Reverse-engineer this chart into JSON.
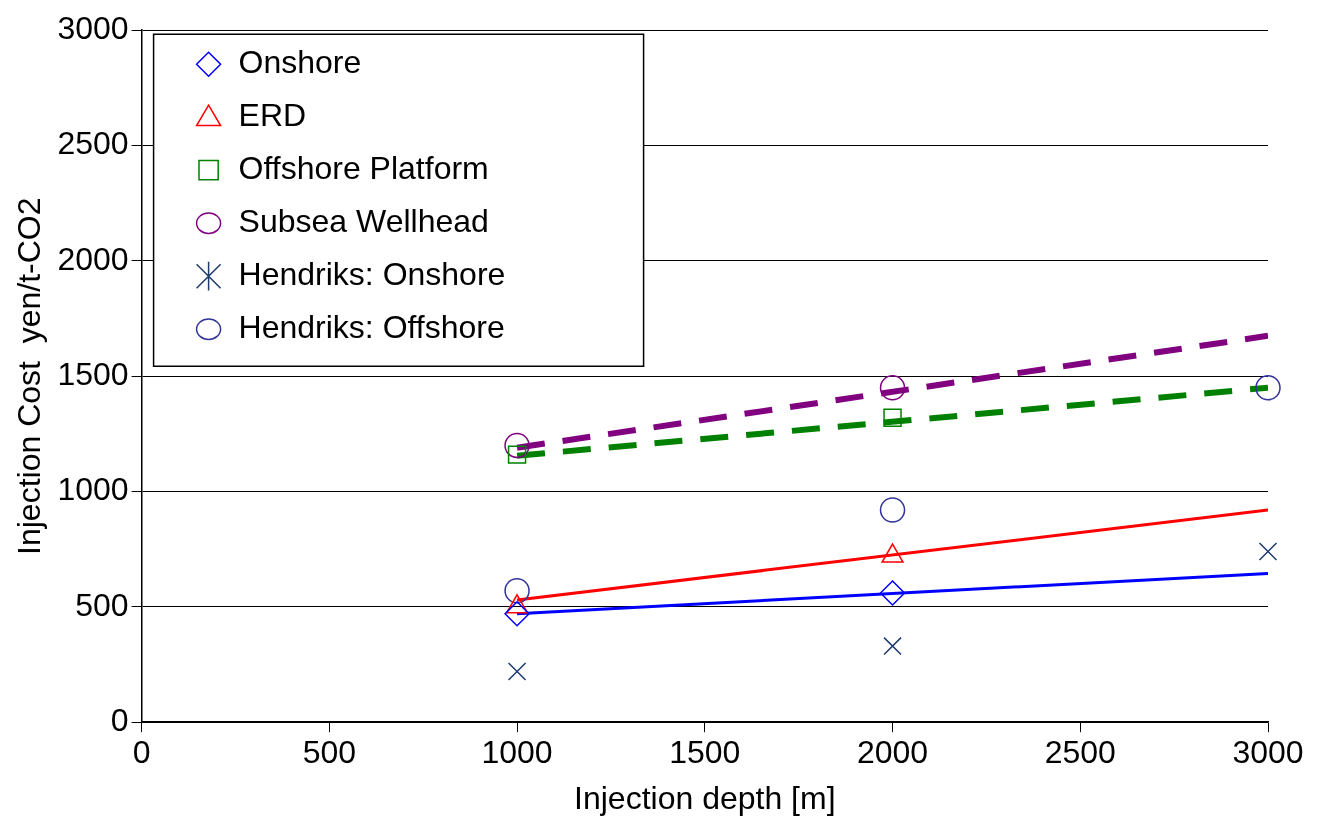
{
  "chart_data": {
    "type": "scatter",
    "xlabel": "Injection depth [m]",
    "ylabel": "Injection Cost  yen/t-CO2",
    "xlim": [
      0,
      3000
    ],
    "ylim": [
      0,
      3000
    ],
    "xticks": [
      0,
      500,
      1000,
      1500,
      2000,
      2500,
      3000
    ],
    "yticks": [
      0,
      500,
      1000,
      1500,
      2000,
      2500,
      3000
    ],
    "grid": "y",
    "legend": "top left",
    "series": [
      {
        "name": "Onshore",
        "color": "#0000ff",
        "marker": "diamond",
        "x": [
          1000,
          2000
        ],
        "values": [
          470,
          560
        ]
      },
      {
        "name": "ERD",
        "color": "#ff0000",
        "marker": "triangle",
        "x": [
          1000,
          2000
        ],
        "values": [
          500,
          720
        ]
      },
      {
        "name": "Offshore Platform",
        "color": "#008000",
        "marker": "square",
        "x": [
          1000,
          2000
        ],
        "values": [
          1160,
          1320
        ]
      },
      {
        "name": "Subsea Wellhead",
        "color": "#800080",
        "marker": "circle",
        "x": [
          1000,
          2000
        ],
        "values": [
          1200,
          1450
        ]
      },
      {
        "name": "Hendriks: Onshore",
        "color": "#1f3a6e",
        "marker": "cross",
        "x": [
          1000,
          2000,
          3000
        ],
        "values": [
          220,
          330,
          740
        ]
      },
      {
        "name": "Hendriks: Offshore",
        "color": "#333399",
        "marker": "circle",
        "x": [
          1000,
          2000,
          3000
        ],
        "values": [
          570,
          920,
          1450
        ]
      },
      {
        "type": "line",
        "color": "#0000ff",
        "line_style": "solid",
        "marker": "none",
        "x": [
          1000,
          3000
        ],
        "values": [
          470,
          645
        ]
      },
      {
        "type": "line",
        "color": "#ff0000",
        "line_style": "solid",
        "marker": "none",
        "x": [
          1000,
          3000
        ],
        "values": [
          530,
          920
        ]
      },
      {
        "type": "line",
        "color": "#008000",
        "line_style": "dashed",
        "marker": "none",
        "x": [
          1000,
          3000
        ],
        "values": [
          1155,
          1450
        ]
      },
      {
        "type": "line",
        "color": "#800080",
        "line_style": "dashed",
        "marker": "none",
        "x": [
          1000,
          3000
        ],
        "values": [
          1190,
          1675
        ]
      }
    ]
  }
}
